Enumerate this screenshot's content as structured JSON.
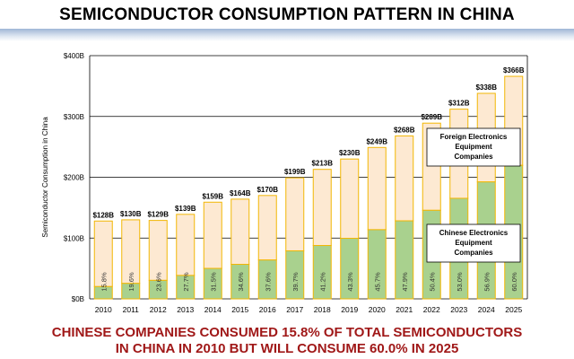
{
  "title": "SEMICONDUCTOR CONSUMPTION PATTERN IN CHINA",
  "footer": {
    "line1": "CHINESE COMPANIES CONSUMED 15.8% OF TOTAL SEMICONDUCTORS",
    "line2": "IN CHINA IN 2010 BUT WILL CONSUME 60.0% IN 2025"
  },
  "colors": {
    "chinese": "#a9d18e",
    "foreign": "#fde9d2",
    "bar_border": "#f2b705",
    "grid": "#000000",
    "footer_text": "#a01818"
  },
  "chart_data": {
    "type": "bar",
    "stacked": true,
    "ylabel": "Semiconductor Consumption in China",
    "ylim": [
      0,
      400
    ],
    "yticks": [
      0,
      100,
      200,
      300,
      400
    ],
    "ytick_labels": [
      "$0B",
      "$100B",
      "$200B",
      "$300B",
      "$400B"
    ],
    "grid": true,
    "categories": [
      "2010",
      "2011",
      "2012",
      "2013",
      "2014",
      "2015",
      "2016",
      "2017",
      "2018",
      "2019",
      "2020",
      "2021",
      "2022",
      "2023",
      "2024",
      "2025"
    ],
    "totals": [
      128,
      130,
      129,
      139,
      159,
      164,
      170,
      199,
      213,
      230,
      249,
      268,
      289,
      312,
      338,
      366
    ],
    "total_labels": [
      "$128B",
      "$130B",
      "$129B",
      "$139B",
      "$159B",
      "$164B",
      "$170B",
      "$199B",
      "$213B",
      "$230B",
      "$249B",
      "$268B",
      "$289B",
      "$312B",
      "$338B",
      "$366B"
    ],
    "chinese_share": [
      15.8,
      19.6,
      23.6,
      27.7,
      31.5,
      34.6,
      37.6,
      39.7,
      41.2,
      43.3,
      45.7,
      47.9,
      50.4,
      53.0,
      56.9,
      60.0
    ],
    "share_labels": [
      "15.8%",
      "19.6%",
      "23.6%",
      "27.7%",
      "31.5%",
      "34.6%",
      "37.6%",
      "39.7%",
      "41.2%",
      "43.3%",
      "45.7%",
      "47.9%",
      "50.4%",
      "53.0%",
      "56.9%",
      "60.0%"
    ],
    "series": [
      {
        "name": "Chinese Electronics Equipment Companies",
        "lines": [
          "Chinese Electronics",
          "Equipment",
          "Companies"
        ]
      },
      {
        "name": "Foreign Electronics Equipment Companies",
        "lines": [
          "Foreign Electronics",
          "Equipment",
          "Companies"
        ]
      }
    ]
  }
}
